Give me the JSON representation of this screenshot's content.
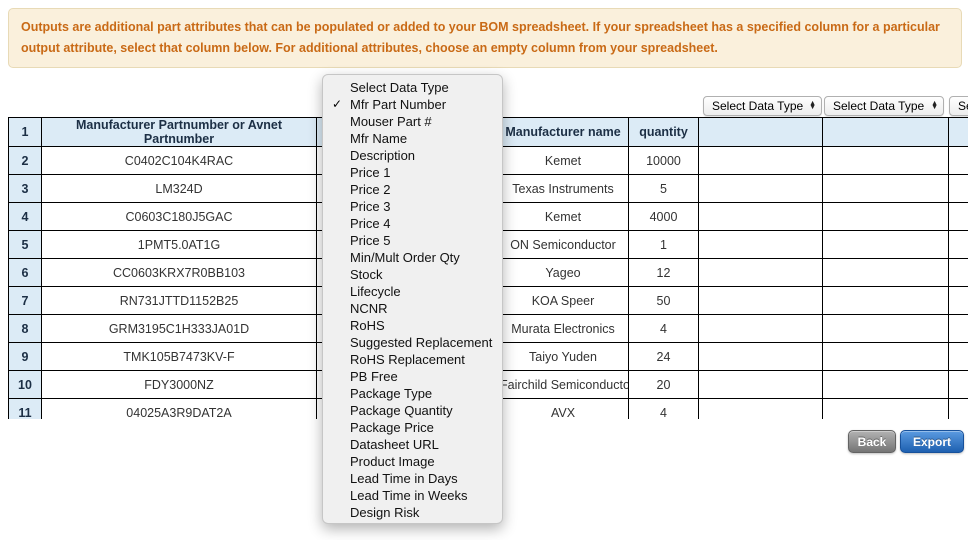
{
  "banner": {
    "text": "Outputs are additional part attributes that can be populated or added to your BOM spreadsheet. If your spreadsheet has a specified column for a particular output attribute, select that column below. For additional attributes, choose an empty column from your spreadsheet."
  },
  "header_selects": [
    {
      "value": "Select Data Type"
    },
    {
      "value": "Select Data Type"
    },
    {
      "value": "Select Data Type"
    }
  ],
  "open_menu": {
    "check_glyph": "✓",
    "items": [
      {
        "label": "Select Data Type",
        "checked": false
      },
      {
        "label": "Mfr Part Number",
        "checked": true
      },
      {
        "label": "Mouser Part #",
        "checked": false
      },
      {
        "label": "Mfr Name",
        "checked": false
      },
      {
        "label": "Description",
        "checked": false
      },
      {
        "label": "Price 1",
        "checked": false
      },
      {
        "label": "Price 2",
        "checked": false
      },
      {
        "label": "Price 3",
        "checked": false
      },
      {
        "label": "Price 4",
        "checked": false
      },
      {
        "label": "Price 5",
        "checked": false
      },
      {
        "label": "Min/Mult Order Qty",
        "checked": false
      },
      {
        "label": "Stock",
        "checked": false
      },
      {
        "label": "Lifecycle",
        "checked": false
      },
      {
        "label": "NCNR",
        "checked": false
      },
      {
        "label": "RoHS",
        "checked": false
      },
      {
        "label": "Suggested Replacement",
        "checked": false
      },
      {
        "label": "RoHS Replacement",
        "checked": false
      },
      {
        "label": "PB Free",
        "checked": false
      },
      {
        "label": "Package Type",
        "checked": false
      },
      {
        "label": "Package Quantity",
        "checked": false
      },
      {
        "label": "Package Price",
        "checked": false
      },
      {
        "label": "Datasheet URL",
        "checked": false
      },
      {
        "label": "Product Image",
        "checked": false
      },
      {
        "label": "Lead Time in Days",
        "checked": false
      },
      {
        "label": "Lead Time in Weeks",
        "checked": false
      },
      {
        "label": "Design Risk",
        "checked": false
      }
    ]
  },
  "table": {
    "header_row": {
      "num": "1",
      "cells": [
        "Manufacturer Partnumber or Avnet Partnumber",
        "",
        "Manufacturer name",
        "quantity",
        "",
        "",
        ""
      ]
    },
    "rows": [
      {
        "num": "2",
        "cells": [
          "C0402C104K4RAC",
          "",
          "Kemet",
          "10000",
          "",
          "",
          ""
        ]
      },
      {
        "num": "3",
        "cells": [
          "LM324D",
          "",
          "Texas Instruments",
          "5",
          "",
          "",
          ""
        ]
      },
      {
        "num": "4",
        "cells": [
          "C0603C180J5GAC",
          "",
          "Kemet",
          "4000",
          "",
          "",
          ""
        ]
      },
      {
        "num": "5",
        "cells": [
          "1PMT5.0AT1G",
          "",
          "ON Semiconductor",
          "1",
          "",
          "",
          ""
        ]
      },
      {
        "num": "6",
        "cells": [
          "CC0603KRX7R0BB103",
          "",
          "Yageo",
          "12",
          "",
          "",
          ""
        ]
      },
      {
        "num": "7",
        "cells": [
          "RN731JTTD1152B25",
          "",
          "KOA Speer",
          "50",
          "",
          "",
          ""
        ]
      },
      {
        "num": "8",
        "cells": [
          "GRM3195C1H333JA01D",
          "",
          "Murata Electronics",
          "4",
          "",
          "",
          ""
        ]
      },
      {
        "num": "9",
        "cells": [
          "TMK105B7473KV-F",
          "",
          "Taiyo Yuden",
          "24",
          "",
          "",
          ""
        ]
      },
      {
        "num": "10",
        "cells": [
          "FDY3000NZ",
          "",
          "Fairchild Semiconductor",
          "20",
          "",
          "",
          ""
        ]
      },
      {
        "num": "11",
        "cells": [
          "04025A3R9DAT2A",
          "",
          "AVX",
          "4",
          "",
          "",
          ""
        ]
      }
    ]
  },
  "buttons": {
    "back": "Back",
    "export": "Export"
  },
  "colors": {
    "banner-bg": "#faf0dc",
    "banner-border": "#e8dab6",
    "banner-text": "#c96a16",
    "table-border": "#000000",
    "header-bg": "#dcebf6",
    "header-text": "#1c2f45",
    "cell-text": "#333333",
    "menu-bg": "#f0f0f0",
    "menu-border": "#c6c6c6",
    "menu-text": "#111111",
    "select-border": "#b0b0b0",
    "back-top": "#b2b2b2",
    "back-bottom": "#757575",
    "back-border": "#636363",
    "export-top": "#5b9be1",
    "export-bottom": "#1e60b0",
    "export-border": "#17519b"
  }
}
